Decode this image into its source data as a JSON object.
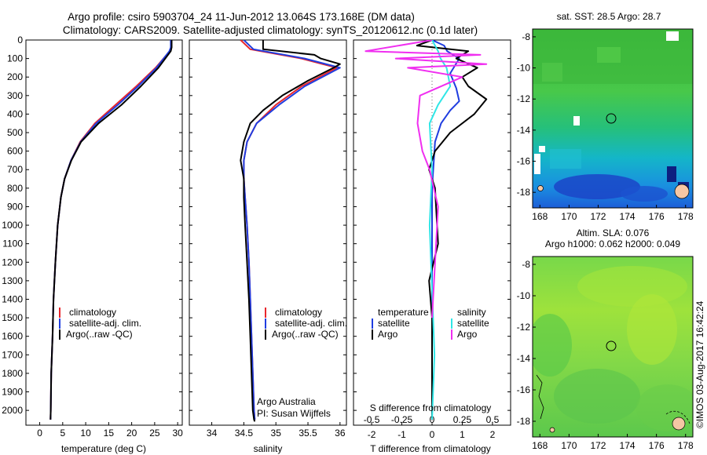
{
  "header": {
    "title_line1": "Argo profile: csiro 5903704_24 11-Jun-2012 13.064S 173.168E (DM data)",
    "title_line2": "Climatology: CARS2009. Satellite-adjusted climatology: synTS_20120612.nc (0.1d later)"
  },
  "depth_ticks": [
    "0",
    "100",
    "200",
    "300",
    "400",
    "500",
    "600",
    "700",
    "800",
    "900",
    "1000",
    "1100",
    "1200",
    "1300",
    "1400",
    "1500",
    "1600",
    "1700",
    "1800",
    "1900",
    "2000"
  ],
  "colors": {
    "climatology": "#e8262c",
    "satellite": "#1f3de0",
    "argo": "#000000",
    "sal_satellite": "#2fe6e6",
    "sal_argo": "#f02ff0"
  },
  "temperature_panel": {
    "xlabel": "temperature (deg C)",
    "xticks": [
      "0",
      "5",
      "10",
      "15",
      "20",
      "25",
      "30"
    ],
    "legend": [
      "climatology",
      "satellite-adj. clim.",
      "Argo(..raw -QC)"
    ]
  },
  "salinity_panel": {
    "xlabel": "salinity",
    "xticks": [
      "34",
      "34.5",
      "35",
      "35.5",
      "36"
    ],
    "legend": [
      "climatology",
      "satellite-adj. clim.",
      "Argo(..raw -QC)"
    ],
    "credit_line1": "Argo Australia",
    "credit_line2": "PI: Susan Wijffels"
  },
  "difference_panel": {
    "legend_temp_title": "temperature",
    "legend_sal_title": "salinity",
    "legend_temp_items": [
      "satellite",
      "Argo"
    ],
    "legend_sal_items": [
      "satellite",
      "Argo"
    ],
    "s_label": "S difference from climatology",
    "s_ticks": [
      "-0.5",
      "-0.25",
      "0",
      "0.25",
      "0.5"
    ],
    "t_label": "T difference from climatology",
    "t_ticks": [
      "-2",
      "-1",
      "0",
      "1",
      "2"
    ]
  },
  "sst_map": {
    "title": "sat. SST: 28.5 Argo: 28.7",
    "lon_ticks": [
      "168",
      "170",
      "172",
      "174",
      "176",
      "178"
    ],
    "lat_ticks": [
      "-8",
      "-10",
      "-12",
      "-14",
      "-16",
      "-18"
    ]
  },
  "sla_map": {
    "title_line1": "Altim. SLA: 0.076",
    "title_line2": "Argo h1000: 0.062 h2000: 0.049",
    "lon_ticks": [
      "168",
      "170",
      "172",
      "174",
      "176",
      "178"
    ],
    "lat_ticks": [
      "-8",
      "-10",
      "-12",
      "-14",
      "-16",
      "-18"
    ]
  },
  "footer_stamp": "©IMOS 03-Aug-2017 16:42:24",
  "chart_data": [
    {
      "type": "line",
      "title": "",
      "xlabel": "temperature (deg C)",
      "ylabel": "",
      "xlim": [
        -3,
        31
      ],
      "ylim": [
        2080,
        0
      ],
      "series": [
        {
          "name": "climatology",
          "x": [
            28.6,
            28.6,
            28.3,
            25.2,
            21.0,
            16.5,
            12.0,
            8.8,
            6.8,
            5.4,
            4.6,
            3.9,
            3.4,
            3.0,
            2.8,
            2.5,
            2.4,
            2.35
          ],
          "y": [
            0,
            40,
            60,
            150,
            250,
            350,
            450,
            550,
            650,
            750,
            850,
            1000,
            1200,
            1400,
            1600,
            1800,
            2000,
            2050
          ]
        },
        {
          "name": "satellite-adj. clim.",
          "x": [
            28.5,
            28.5,
            28.2,
            25.4,
            21.4,
            17.0,
            12.3,
            8.9,
            6.8,
            5.4,
            4.6,
            3.9,
            3.4,
            3.0,
            2.8,
            2.5,
            2.4,
            2.35
          ],
          "y": [
            0,
            40,
            60,
            150,
            250,
            350,
            450,
            550,
            650,
            750,
            850,
            1000,
            1200,
            1400,
            1600,
            1800,
            2000,
            2050
          ]
        },
        {
          "name": "Argo(..raw -QC)",
          "x": [
            28.7,
            28.7,
            28.5,
            25.8,
            22.0,
            17.8,
            12.8,
            9.0,
            6.9,
            5.4,
            4.6,
            3.9,
            3.4,
            3.0,
            2.8,
            2.5,
            2.4,
            2.35
          ],
          "y": [
            0,
            40,
            60,
            150,
            250,
            350,
            450,
            550,
            650,
            750,
            850,
            1000,
            1200,
            1400,
            1600,
            1800,
            2000,
            2050
          ]
        }
      ]
    },
    {
      "type": "line",
      "title": "",
      "xlabel": "salinity",
      "ylabel": "",
      "xlim": [
        33.65,
        36.1
      ],
      "ylim": [
        2080,
        0
      ],
      "series": [
        {
          "name": "climatology",
          "x": [
            34.45,
            34.6,
            35.4,
            35.95,
            35.4,
            35.0,
            34.7,
            34.55,
            34.5,
            34.5,
            34.52,
            34.55,
            34.58,
            34.6,
            34.62,
            34.64,
            34.66,
            34.67
          ],
          "y": [
            0,
            50,
            100,
            150,
            250,
            350,
            450,
            550,
            650,
            750,
            850,
            1000,
            1200,
            1400,
            1600,
            1800,
            2000,
            2050
          ]
        },
        {
          "name": "satellite-adj. clim.",
          "x": [
            34.5,
            34.65,
            35.45,
            36.0,
            35.45,
            35.05,
            34.7,
            34.55,
            34.5,
            34.5,
            34.52,
            34.55,
            34.58,
            34.6,
            34.62,
            34.64,
            34.66,
            34.67
          ],
          "y": [
            0,
            50,
            100,
            150,
            250,
            350,
            450,
            550,
            650,
            750,
            850,
            1000,
            1200,
            1400,
            1600,
            1800,
            2000,
            2050
          ]
        },
        {
          "name": "Argo(..raw -QC)",
          "x": [
            34.8,
            34.8,
            35.6,
            35.7,
            36.0,
            35.9,
            35.5,
            35.1,
            34.8,
            34.6,
            34.5,
            34.45,
            34.5,
            34.5,
            34.52,
            34.55,
            34.58,
            34.6,
            34.62,
            34.64,
            34.66,
            34.67
          ],
          "y": [
            0,
            50,
            80,
            100,
            130,
            150,
            220,
            300,
            380,
            450,
            550,
            650,
            750,
            850,
            1000,
            1200,
            1400,
            1600,
            1800,
            2000,
            2050,
            2060
          ]
        }
      ]
    },
    {
      "type": "line",
      "title": "",
      "xlabel": "T difference from climatology",
      "ylabel": "",
      "xlim": [
        -2.6,
        2.6
      ],
      "ylim": [
        2080,
        0
      ],
      "series": [
        {
          "name": "satellite",
          "x": [
            0,
            0.4,
            0.5,
            0.9,
            0.6,
            0.8,
            0.9,
            0.6,
            0.3,
            0.1,
            0,
            0,
            0
          ],
          "y": [
            0,
            30,
            60,
            100,
            180,
            260,
            330,
            380,
            450,
            550,
            800,
            1500,
            2050
          ]
        },
        {
          "name": "Argo",
          "x": [
            0,
            -0.5,
            1.2,
            0.8,
            1.5,
            1.0,
            1.2,
            1.8,
            1.4,
            0.6,
            0.1,
            -0.1,
            0.1,
            0.2,
            -0.1,
            0,
            0
          ],
          "y": [
            0,
            30,
            60,
            100,
            150,
            200,
            250,
            320,
            400,
            500,
            600,
            700,
            800,
            1100,
            1300,
            1500,
            2050
          ]
        },
        {
          "name": "salinity satellite",
          "x": [
            0,
            0.05,
            0.07,
            0.12,
            0.15,
            0.05,
            -0.02,
            0,
            -0.02,
            0.02,
            0
          ],
          "y": [
            0,
            60,
            100,
            150,
            250,
            350,
            450,
            700,
            1000,
            1700,
            2050
          ]
        },
        {
          "name": "salinity Argo",
          "x": [
            0,
            -0.55,
            0.4,
            -0.3,
            0.45,
            -0.2,
            0.25,
            -0.1,
            -0.12,
            -0.08,
            -0.02,
            0.05,
            0
          ],
          "y": [
            0,
            60,
            80,
            100,
            130,
            150,
            200,
            300,
            450,
            600,
            700,
            900,
            1500
          ]
        }
      ]
    },
    {
      "type": "heatmap",
      "title": "sat. SST: 28.5 Argo: 28.7",
      "xlim": [
        167.5,
        178.5
      ],
      "ylim": [
        -19,
        -7.5
      ]
    },
    {
      "type": "heatmap",
      "title": "Altim. SLA: 0.076",
      "xlim": [
        167.5,
        178.5
      ],
      "ylim": [
        -19,
        -7.5
      ]
    }
  ]
}
